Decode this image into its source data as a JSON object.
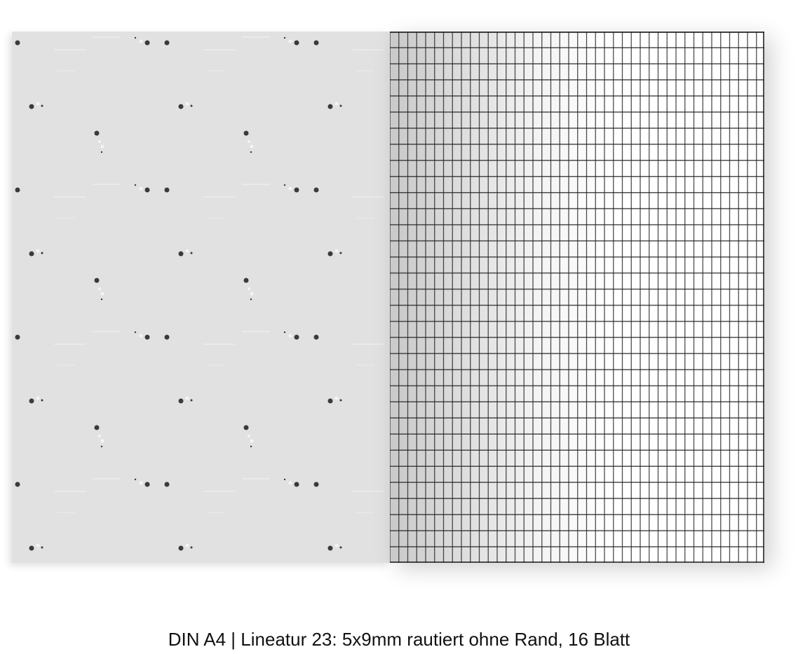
{
  "product": {
    "caption": "DIN A4 | Lineatur 23: 5x9mm rautiert ohne Rand, 16 Blatt",
    "cover": {
      "pattern": "dots-and-dashes",
      "background_color": "#e1e1e1",
      "dot_color": "#3a3a3a"
    },
    "inner_page": {
      "ruling": "grid",
      "line_color": "#222222",
      "background_color": "#ffffff"
    }
  }
}
